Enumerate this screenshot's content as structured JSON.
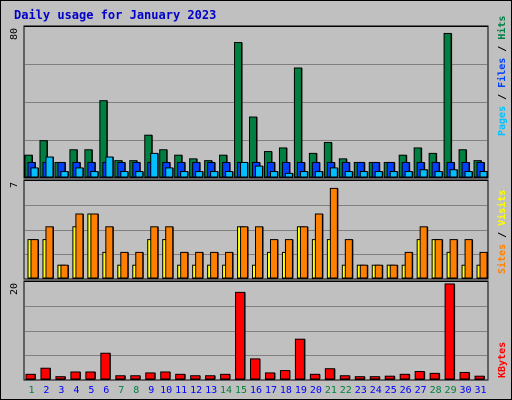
{
  "chart_title": "Daily usage for January 2023",
  "colors": {
    "hits": "#008040",
    "files": "#0040ff",
    "pages": "#00c0ff",
    "visits": "#ffff00",
    "sites": "#ff8000",
    "kbytes": "#ff0000",
    "weekend_day": "#008040",
    "weekday": "#0000ff"
  },
  "chart_data": [
    {
      "type": "bar",
      "name_parts": [
        "Pages",
        "Files",
        "Hits"
      ],
      "separator": " / ",
      "scale_label": "80",
      "ylim": [
        0,
        82
      ],
      "categories": [
        "1",
        "2",
        "3",
        "4",
        "5",
        "6",
        "7",
        "8",
        "9",
        "10",
        "11",
        "12",
        "13",
        "14",
        "15",
        "16",
        "17",
        "18",
        "19",
        "20",
        "21",
        "22",
        "23",
        "24",
        "25",
        "26",
        "27",
        "28",
        "29",
        "30",
        "31"
      ],
      "series": [
        {
          "name": "Hits",
          "values": [
            12,
            20,
            8,
            15,
            15,
            42,
            9,
            9,
            23,
            15,
            12,
            10,
            9,
            12,
            74,
            33,
            14,
            16,
            60,
            13,
            19,
            10,
            8,
            8,
            8,
            12,
            16,
            13,
            79,
            15,
            9
          ]
        },
        {
          "name": "Files",
          "values": [
            8,
            8,
            8,
            8,
            8,
            8,
            8,
            8,
            8,
            8,
            8,
            8,
            8,
            8,
            8,
            8,
            8,
            8,
            8,
            8,
            8,
            8,
            8,
            8,
            8,
            8,
            8,
            8,
            8,
            8,
            8
          ]
        },
        {
          "name": "Pages",
          "values": [
            5,
            11,
            3,
            5,
            3,
            11,
            3,
            3,
            13,
            5,
            3,
            3,
            3,
            3,
            8,
            6,
            3,
            2,
            3,
            3,
            5,
            3,
            3,
            3,
            3,
            3,
            4,
            3,
            4,
            3,
            3
          ]
        }
      ]
    },
    {
      "type": "bar",
      "name_parts": [
        "Sites",
        "Visits"
      ],
      "separator": " / ",
      "scale_label": "7",
      "ylim": [
        0,
        7.5
      ],
      "categories": [
        "1",
        "2",
        "3",
        "4",
        "5",
        "6",
        "7",
        "8",
        "9",
        "10",
        "11",
        "12",
        "13",
        "14",
        "15",
        "16",
        "17",
        "18",
        "19",
        "20",
        "21",
        "22",
        "23",
        "24",
        "25",
        "26",
        "27",
        "28",
        "29",
        "30",
        "31"
      ],
      "series": [
        {
          "name": "Visits",
          "values": [
            3,
            3,
            1,
            4,
            5,
            2,
            1,
            1,
            3,
            3,
            1,
            1,
            1,
            1,
            4,
            1,
            2,
            2,
            4,
            3,
            3,
            1,
            1,
            1,
            1,
            1,
            3,
            3,
            2,
            1,
            1
          ]
        },
        {
          "name": "Sites",
          "values": [
            3,
            4,
            1,
            5,
            5,
            4,
            2,
            2,
            4,
            4,
            2,
            2,
            2,
            2,
            4,
            4,
            3,
            3,
            4,
            5,
            7,
            3,
            1,
            1,
            1,
            2,
            4,
            3,
            3,
            3,
            2
          ]
        }
      ]
    },
    {
      "type": "bar",
      "name_parts": [
        "KBytes"
      ],
      "separator": "",
      "scale_label": "20",
      "ylim": [
        0,
        20.5
      ],
      "categories": [
        "1",
        "2",
        "3",
        "4",
        "5",
        "6",
        "7",
        "8",
        "9",
        "10",
        "11",
        "12",
        "13",
        "14",
        "15",
        "16",
        "17",
        "18",
        "19",
        "20",
        "21",
        "22",
        "23",
        "24",
        "25",
        "26",
        "27",
        "28",
        "29",
        "30",
        "31"
      ],
      "series": [
        {
          "name": "KBytes",
          "values": [
            1,
            2.3,
            0.5,
            1.5,
            1.5,
            5.5,
            0.7,
            0.7,
            1.3,
            1.5,
            1,
            0.7,
            0.7,
            1,
            18.5,
            4.3,
            1.3,
            1.8,
            8.5,
            1,
            2.2,
            0.7,
            0.5,
            0.5,
            0.6,
            1,
            1.6,
            1.2,
            20.3,
            1.4,
            0.6
          ]
        }
      ]
    }
  ],
  "weekend_days": [
    1,
    7,
    8,
    14,
    15,
    21,
    22,
    28,
    29
  ]
}
